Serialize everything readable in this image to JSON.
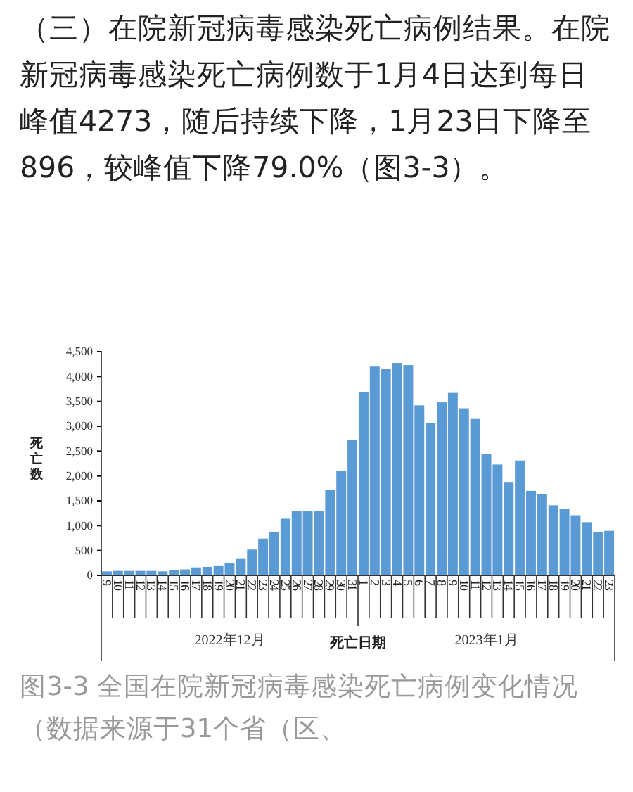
{
  "chart_data": {
    "type": "bar",
    "title": "（三）在院新冠病毒感染死亡病例结果。在院新冠病毒感染死亡病例数于1月4日达到每日峰值4273，随后持续下降，1月23日下降至896，较峰值下降79.0%（图3-3）。",
    "xlabel": "死亡日期",
    "ylabel": "死亡数",
    "categories": [
      "9",
      "10",
      "11",
      "12",
      "13",
      "14",
      "15",
      "16",
      "17",
      "18",
      "19",
      "20",
      "21",
      "22",
      "23",
      "24",
      "25",
      "26",
      "27",
      "28",
      "29",
      "30",
      "31",
      "1",
      "2",
      "3",
      "4",
      "5",
      "6",
      "7",
      "8",
      "9",
      "10",
      "11",
      "12",
      "13",
      "14",
      "15",
      "16",
      "17",
      "18",
      "19",
      "20",
      "21",
      "22",
      "23"
    ],
    "values": [
      80,
      90,
      90,
      90,
      90,
      80,
      110,
      120,
      160,
      170,
      200,
      250,
      330,
      520,
      740,
      870,
      1140,
      1290,
      1300,
      1300,
      1720,
      2100,
      2720,
      3690,
      4200,
      4150,
      4273,
      4230,
      3420,
      3060,
      3480,
      3670,
      3360,
      3160,
      2440,
      2230,
      1880,
      2310,
      1700,
      1640,
      1410,
      1330,
      1210,
      1070,
      870,
      896
    ],
    "color": "#5b9bd5",
    "ylim": [
      0,
      4500
    ],
    "yticks": [
      0,
      {
        "value": 500,
        "label": "500"
      },
      {
        "value": 1000,
        "label": "1,000"
      },
      {
        "value": 1500,
        "label": "1,500"
      },
      {
        "value": 2000,
        "label": "2,000"
      },
      {
        "value": 2500,
        "label": "2,500"
      },
      {
        "value": 3000,
        "label": "3,000"
      },
      {
        "value": 3500,
        "label": "3,500"
      },
      {
        "value": 4000,
        "label": "4,000"
      },
      {
        "value": 4500,
        "label": "4,500"
      }
    ],
    "grid": false,
    "annotations": [
      "2022年12月",
      "2023年1月",
      "图3-3 全国在院新冠病毒感染死亡病例变化情况（数据来源于31个省（区、"
    ]
  }
}
